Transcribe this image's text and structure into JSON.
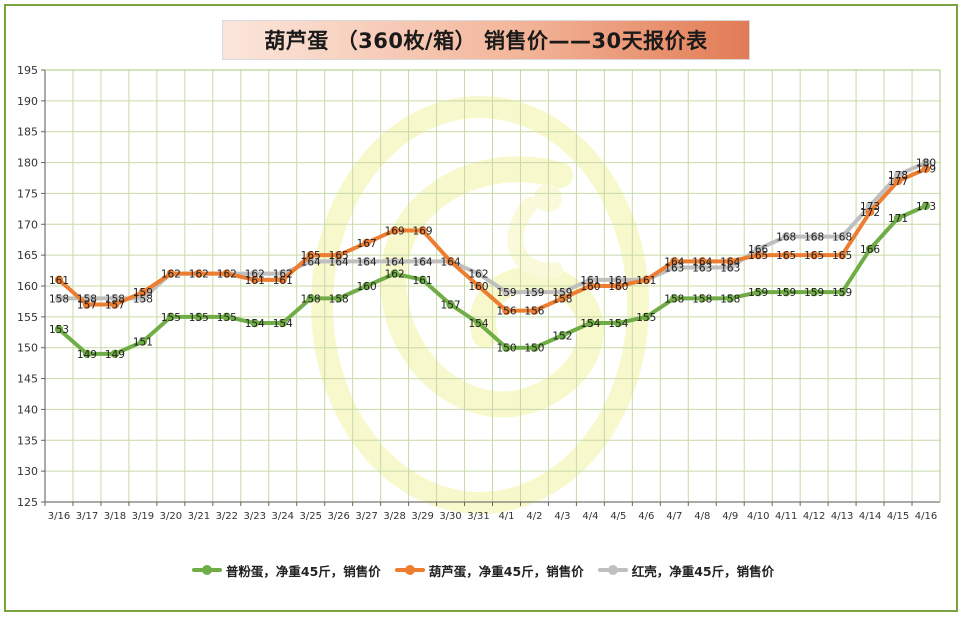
{
  "chart_data": {
    "type": "line",
    "title": "葫芦蛋 （360枚/箱） 销售价——30天报价表",
    "ylim": [
      125,
      195
    ],
    "yticks": [
      125,
      130,
      135,
      140,
      145,
      150,
      155,
      160,
      165,
      170,
      175,
      180,
      185,
      190,
      195
    ],
    "grid": true,
    "legend_position": "bottom",
    "categories": [
      "3/16",
      "3/17",
      "3/18",
      "3/19",
      "3/20",
      "3/21",
      "3/22",
      "3/23",
      "3/24",
      "3/25",
      "3/26",
      "3/27",
      "3/28",
      "3/29",
      "3/30",
      "3/31",
      "4/1",
      "4/2",
      "4/3",
      "4/4",
      "4/5",
      "4/6",
      "4/7",
      "4/8",
      "4/9",
      "4/10",
      "4/11",
      "4/12",
      "4/13",
      "4/14",
      "4/15",
      "4/16"
    ],
    "series": [
      {
        "name": "普粉蛋，净重45斤，销售价",
        "color": "#70ad47",
        "values": [
          153,
          149,
          149,
          151,
          155,
          155,
          155,
          154,
          154,
          158,
          158,
          160,
          162,
          161,
          157,
          154,
          150,
          150,
          152,
          154,
          154,
          155,
          158,
          158,
          158,
          159,
          159,
          159,
          159,
          166,
          171,
          173
        ],
        "labels": [
          "153",
          "149",
          "149",
          "151",
          "155",
          "155",
          "155",
          "154",
          "154",
          "158",
          "158",
          "160",
          "162",
          "161",
          "157",
          "154",
          "150",
          "150",
          "152",
          "154",
          "154",
          "155",
          "158",
          "158",
          "158",
          "159",
          "159",
          "159",
          "159",
          "166",
          "171",
          "173"
        ]
      },
      {
        "name": "葫芦蛋，净重45斤，销售价",
        "color": "#ed7d31",
        "values": [
          161,
          157,
          157,
          159,
          162,
          162,
          162,
          161,
          161,
          165,
          165,
          167,
          169,
          169,
          164,
          160,
          156,
          156,
          158,
          160,
          160,
          161,
          164,
          164,
          164,
          165,
          165,
          165,
          165,
          172,
          177,
          179
        ],
        "labels": [
          "161",
          "157",
          "157",
          "159",
          "",
          "",
          "",
          "161",
          "161",
          "165",
          "165",
          "167",
          "169",
          "169",
          "",
          "160",
          "156",
          "156",
          "158",
          "160",
          "160",
          "",
          "164",
          "164",
          "164",
          "165",
          "165",
          "165",
          "165",
          "172",
          "177",
          "179"
        ]
      },
      {
        "name": "红壳，净重45斤，销售价",
        "color": "#bfbfbf",
        "values": [
          158,
          158,
          158,
          158,
          162,
          162,
          162,
          162,
          162,
          164,
          164,
          164,
          164,
          164,
          164,
          162,
          159,
          159,
          159,
          161,
          161,
          161,
          163,
          163,
          163,
          166,
          168,
          168,
          168,
          173,
          178,
          180
        ],
        "labels": [
          "158",
          "158",
          "158",
          "158",
          "162",
          "162",
          "162",
          "162",
          "162",
          "164",
          "164",
          "164",
          "164",
          "164",
          "164",
          "162",
          "159",
          "159",
          "159",
          "161",
          "161",
          "161",
          "163",
          "163",
          "163",
          "166",
          "168",
          "168",
          "168",
          "173",
          "178",
          "180"
        ]
      }
    ]
  }
}
